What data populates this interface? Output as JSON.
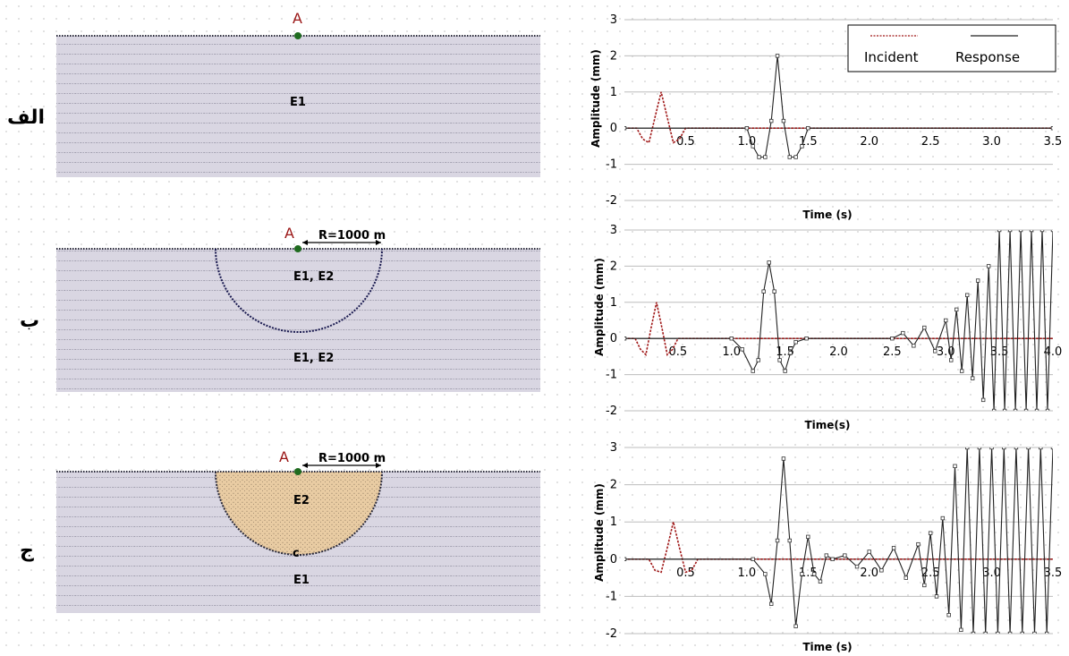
{
  "panel_labels": [
    "الف",
    "ب",
    "ج"
  ],
  "model_panels": [
    {
      "point_label": "A",
      "radius_label": "",
      "regions": [
        "E1"
      ]
    },
    {
      "point_label": "A",
      "radius_label": "R=1000 m",
      "regions": [
        "E1, E2",
        "E1, E2"
      ]
    },
    {
      "point_label": "A",
      "radius_label": "R=1000 m",
      "regions": [
        "E2",
        "E1"
      ],
      "center_mark": "c"
    }
  ],
  "legend": {
    "incident": "Incident",
    "response": "Response"
  },
  "colors": {
    "incident": "#a01818",
    "response": "#222222",
    "domain": "#d7d4e0",
    "valley": "#e6c9a0",
    "point": "#1f6b1f",
    "label_a": "#9a1515"
  },
  "chart_data": [
    {
      "type": "line",
      "title": "",
      "xlabel": "Time (s)",
      "ylabel": "Amplitude (mm)",
      "xlim": [
        0,
        3.5
      ],
      "ylim": [
        -2,
        3
      ],
      "x_ticks": [
        "0.5",
        "1.0",
        "1.5",
        "2.0",
        "2.5",
        "3.0",
        "3.5"
      ],
      "y_ticks": [
        "-2",
        "-1",
        "0",
        "1",
        "2",
        "3"
      ],
      "grid": true,
      "legend_position": "top-right",
      "series": [
        {
          "name": "Incident",
          "x": [
            0,
            0.1,
            0.15,
            0.2,
            0.25,
            0.3,
            0.35,
            0.4,
            0.45,
            0.5,
            0.6,
            3.5
          ],
          "y": [
            0,
            0,
            -0.3,
            -0.4,
            0.3,
            1.0,
            0.3,
            -0.4,
            -0.3,
            0,
            0,
            0
          ]
        },
        {
          "name": "Response",
          "x": [
            0,
            1.0,
            1.05,
            1.1,
            1.15,
            1.2,
            1.25,
            1.3,
            1.35,
            1.4,
            1.45,
            1.5,
            3.5
          ],
          "y": [
            0,
            0,
            -0.5,
            -0.8,
            -0.8,
            0.2,
            2.0,
            0.2,
            -0.8,
            -0.8,
            -0.5,
            0,
            0
          ]
        }
      ]
    },
    {
      "type": "line",
      "title": "",
      "xlabel": "Time(s)",
      "ylabel": "Amplitude (mm)",
      "xlim": [
        0,
        4.0
      ],
      "ylim": [
        -2,
        3
      ],
      "x_ticks": [
        "0.5",
        "1.0",
        "1.5",
        "2.0",
        "2.5",
        "3.0",
        "3.5",
        "4.0"
      ],
      "y_ticks": [
        "-2",
        "-1",
        "0",
        "1",
        "2",
        "3"
      ],
      "grid": true,
      "series": [
        {
          "name": "Incident",
          "x": [
            0,
            0.1,
            0.15,
            0.2,
            0.25,
            0.3,
            0.35,
            0.4,
            0.45,
            0.5,
            0.6,
            4.0
          ],
          "y": [
            0,
            0,
            -0.3,
            -0.45,
            0.3,
            1.0,
            0.3,
            -0.45,
            -0.3,
            0,
            0,
            0
          ]
        },
        {
          "name": "Response",
          "x": [
            0,
            1.0,
            1.1,
            1.2,
            1.25,
            1.3,
            1.35,
            1.4,
            1.45,
            1.5,
            1.55,
            1.6,
            1.7,
            2.5,
            2.6,
            2.7,
            2.8,
            2.9,
            3.0,
            3.05,
            3.1,
            3.15,
            3.2,
            3.25,
            3.3,
            3.35,
            3.4,
            3.45,
            3.5,
            3.55,
            3.6,
            3.65,
            3.7,
            3.75,
            3.8,
            3.85,
            3.9,
            3.95,
            4.0
          ],
          "y": [
            0,
            0,
            -0.3,
            -0.9,
            -0.6,
            1.3,
            2.1,
            1.3,
            -0.6,
            -0.9,
            -0.4,
            -0.1,
            0,
            0,
            0.15,
            -0.2,
            0.3,
            -0.35,
            0.5,
            -0.6,
            0.8,
            -0.9,
            1.2,
            -1.1,
            1.6,
            -1.7,
            2.0,
            -2.0,
            3.0,
            -2.0,
            3.0,
            -2.0,
            3.0,
            -2.0,
            3.0,
            -2.0,
            3.0,
            -2.0,
            3.0
          ]
        }
      ]
    },
    {
      "type": "line",
      "title": "",
      "xlabel": "Time (s)",
      "ylabel": "Amplitude (mm)",
      "xlim": [
        0,
        3.5
      ],
      "ylim": [
        -2,
        3
      ],
      "x_ticks": [
        "0.5",
        "1.0",
        "1.5",
        "2.0",
        "2.5",
        "3.0",
        "3.5"
      ],
      "y_ticks": [
        "-2",
        "-1",
        "0",
        "1",
        "2",
        "3"
      ],
      "grid": true,
      "series": [
        {
          "name": "Incident",
          "x": [
            0,
            0.2,
            0.25,
            0.3,
            0.35,
            0.4,
            0.45,
            0.5,
            0.55,
            0.6,
            0.7,
            3.5
          ],
          "y": [
            0,
            0,
            -0.3,
            -0.35,
            0.3,
            1.0,
            0.3,
            -0.35,
            -0.3,
            0,
            0,
            0
          ]
        },
        {
          "name": "Response",
          "x": [
            0,
            1.05,
            1.15,
            1.2,
            1.25,
            1.3,
            1.35,
            1.4,
            1.45,
            1.5,
            1.55,
            1.6,
            1.65,
            1.7,
            1.8,
            1.9,
            2.0,
            2.1,
            2.2,
            2.3,
            2.4,
            2.45,
            2.5,
            2.55,
            2.6,
            2.65,
            2.7,
            2.75,
            2.8,
            2.85,
            2.9,
            2.95,
            3.0,
            3.05,
            3.1,
            3.15,
            3.2,
            3.25,
            3.3,
            3.35,
            3.4,
            3.45,
            3.5
          ],
          "y": [
            0,
            0,
            -0.4,
            -1.2,
            0.5,
            2.7,
            0.5,
            -1.8,
            -0.4,
            0.6,
            -0.4,
            -0.6,
            0.1,
            0,
            0.1,
            -0.2,
            0.2,
            -0.3,
            0.3,
            -0.5,
            0.4,
            -0.7,
            0.7,
            -1.0,
            1.1,
            -1.5,
            2.5,
            -1.9,
            3.0,
            -2.0,
            3.0,
            -2.0,
            3.0,
            -2.0,
            3.0,
            -2.0,
            3.0,
            -2.0,
            3.0,
            -2.0,
            3.0,
            -2.0,
            3.0
          ]
        }
      ]
    }
  ]
}
